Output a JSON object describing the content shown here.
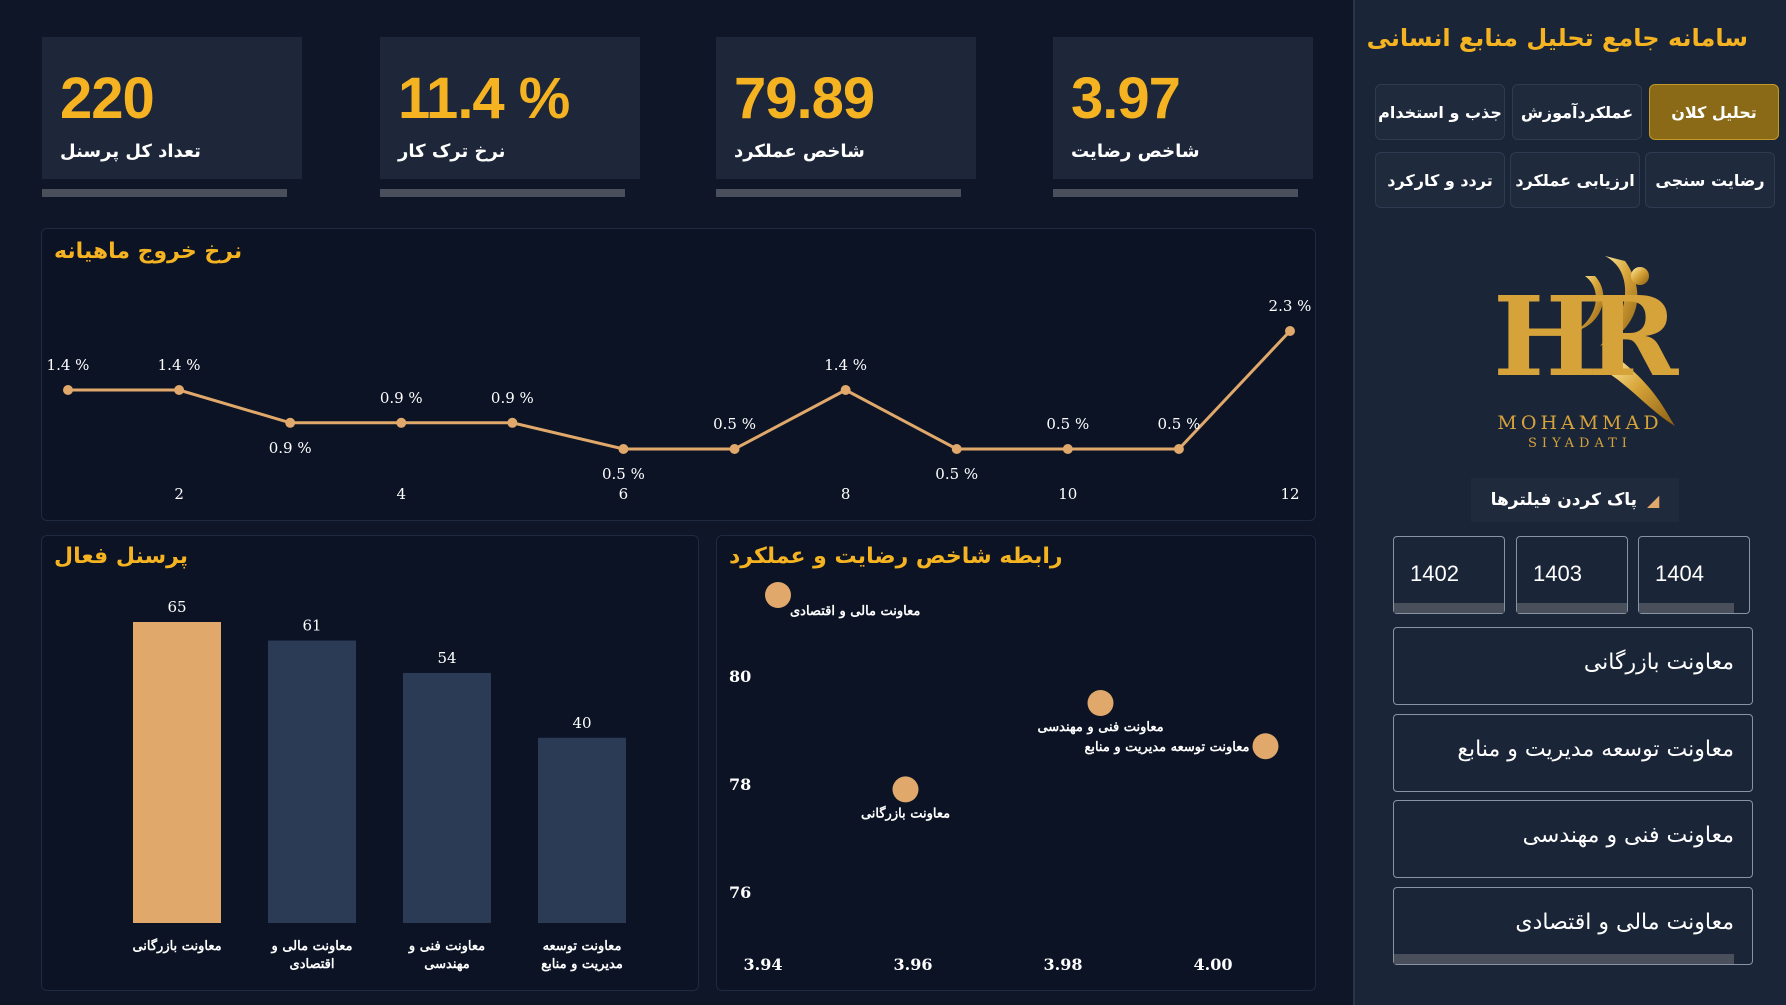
{
  "kpis": [
    {
      "value": "220",
      "label": "تعداد کل پرسنل"
    },
    {
      "value": "11.4 %",
      "label": "نرخ ترک کار"
    },
    {
      "value": "79.89",
      "label": "شاخص عملکرد"
    },
    {
      "value": "3.97",
      "label": "شاخص رضایت"
    }
  ],
  "sidebar": {
    "title": "سامانه جامع تحلیل منابع انسانی",
    "nav": [
      "تحلیل کلان",
      "عملکردآموزش",
      "جذب و استخدام",
      "رضایت سنجی",
      "ارزیابی عملکرد",
      "تردد و کارکرد"
    ],
    "active_nav": "تحلیل کلان",
    "logo": {
      "mark": "HR",
      "name": "MOHAMMAD",
      "sub": "SIYADATI"
    },
    "clear_filters": "پاک کردن فیلترها",
    "years": [
      "1402",
      "1403",
      "1404"
    ],
    "departments": [
      "معاونت بازرگانی",
      "معاونت توسعه مدیریت و منابع",
      "معاونت فنی و مهندسی",
      "معاونت مالی و اقتصادی"
    ]
  },
  "colors": {
    "accent": "#f5b321",
    "line": "#e0a86a",
    "bar_highlight": "#e0a86a",
    "bar": "#2b3a55",
    "bg": "#0e1628"
  },
  "chart_data": [
    {
      "type": "line",
      "title": "نرخ خروج ماهیانه",
      "x": [
        1,
        2,
        3,
        4,
        5,
        6,
        7,
        8,
        9,
        10,
        11,
        12
      ],
      "y": [
        1.4,
        1.4,
        0.9,
        0.9,
        0.9,
        0.5,
        0.5,
        1.4,
        0.5,
        0.5,
        0.5,
        2.3
      ],
      "labels": [
        "1.4 %",
        "1.4 %",
        "0.9 %",
        "0.9 %",
        "0.9 %",
        "0.5 %",
        "0.5 %",
        "1.4 %",
        "0.5 %",
        "0.5 %",
        "0.5 %",
        "2.3 %"
      ],
      "xticks": [
        2,
        4,
        6,
        8,
        10,
        12
      ],
      "grid": false
    },
    {
      "type": "bar",
      "title": "پرسنل فعال",
      "categories": [
        "معاونت بازرگانی",
        "معاونت مالی و اقتصادی",
        "معاونت فنی و مهندسی",
        "معاونت توسعه مدیریت و منابع"
      ],
      "category_lines": [
        [
          "معاونت بازرگانی"
        ],
        [
          "معاونت مالی و",
          "اقتصادی"
        ],
        [
          "معاونت فنی و",
          "مهندسی"
        ],
        [
          "معاونت توسعه",
          "مدیریت و منابع"
        ]
      ],
      "values": [
        65,
        61,
        54,
        40
      ],
      "highlight_index": 0,
      "ylim": [
        0,
        65
      ]
    },
    {
      "type": "scatter",
      "title": "رابطه شاخص رضایت و عملکرد",
      "points": [
        {
          "label": "معاونت مالی و اقتصادی",
          "x": 3.942,
          "y": 81.5
        },
        {
          "label": "معاونت فنی و مهندسی",
          "x": 3.985,
          "y": 79.5
        },
        {
          "label": "معاونت توسعه مدیریت و منابع",
          "x": 4.007,
          "y": 78.7
        },
        {
          "label": "معاونت بازرگانی",
          "x": 3.959,
          "y": 77.9
        }
      ],
      "xticks": [
        3.94,
        3.96,
        3.98,
        4.0
      ],
      "xtick_labels": [
        "3.94",
        "3.96",
        "3.98",
        "4.00"
      ],
      "yticks": [
        76,
        78,
        80
      ],
      "xlim": [
        3.9325,
        4.0155
      ],
      "ylim": [
        75.3,
        81.75
      ]
    }
  ]
}
